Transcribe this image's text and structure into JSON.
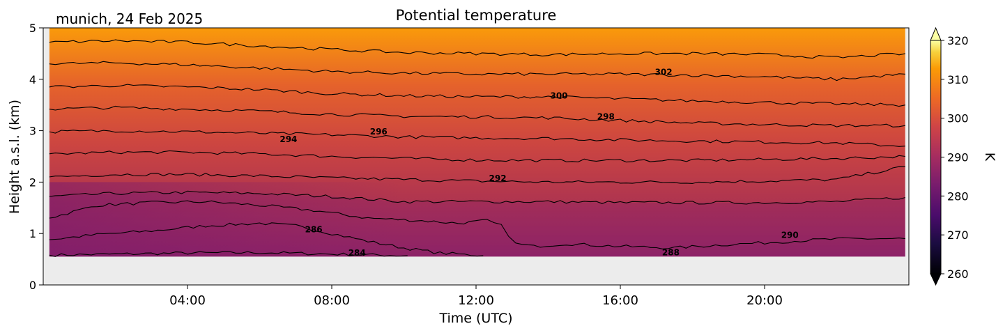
{
  "chart_data": {
    "type": "heatmap",
    "title": "Potential temperature",
    "subtitle": "munich, 24 Feb 2025",
    "xlabel": "Time (UTC)",
    "ylabel": "Height a.s.l. (km)",
    "x_unit": "hours UTC",
    "xlim": [
      0,
      24
    ],
    "x_ticks": [
      4,
      8,
      12,
      16,
      20
    ],
    "x_tick_labels": [
      "04:00",
      "08:00",
      "12:00",
      "16:00",
      "20:00"
    ],
    "ylim": [
      0,
      5
    ],
    "y_ticks": [
      0,
      1,
      2,
      3,
      4,
      5
    ],
    "y_tick_labels": [
      "0",
      "1",
      "2",
      "3",
      "4",
      "5"
    ],
    "data_coverage": {
      "x": [
        0.17,
        23.9
      ],
      "y": [
        0.55,
        5.0
      ]
    },
    "no_data_color": "#ececec",
    "colorbar": {
      "label": "K",
      "min": 260,
      "max": 320,
      "ticks": [
        260,
        270,
        280,
        290,
        300,
        310,
        320
      ],
      "tick_labels": [
        "260",
        "270",
        "280",
        "290",
        "300",
        "310",
        "320"
      ],
      "extend": "both",
      "colormap": "inferno"
    },
    "contours": [
      {
        "level": 284,
        "points": [
          [
            0.17,
            0.58
          ],
          [
            2,
            0.6
          ],
          [
            4,
            0.62
          ],
          [
            6,
            0.63
          ],
          [
            8,
            0.6
          ],
          [
            10.1,
            0.57
          ]
        ]
      },
      {
        "level": 286,
        "points": [
          [
            0.17,
            0.88
          ],
          [
            1.5,
            0.98
          ],
          [
            3,
            1.05
          ],
          [
            4.5,
            1.15
          ],
          [
            6,
            1.2
          ],
          [
            7,
            1.15
          ],
          [
            8,
            1.0
          ],
          [
            9,
            0.85
          ],
          [
            10,
            0.72
          ],
          [
            11,
            0.62
          ],
          [
            12.2,
            0.57
          ]
        ]
      },
      {
        "level": 288,
        "points": [
          [
            0.17,
            1.3
          ],
          [
            1.5,
            1.55
          ],
          [
            3,
            1.6
          ],
          [
            4.5,
            1.62
          ],
          [
            6,
            1.55
          ],
          [
            7.5,
            1.45
          ],
          [
            9,
            1.3
          ],
          [
            10.5,
            1.25
          ],
          [
            11.5,
            1.2
          ],
          [
            12.3,
            1.25
          ],
          [
            12.7,
            1.15
          ],
          [
            13.1,
            0.8
          ],
          [
            13.6,
            0.75
          ],
          [
            14.5,
            0.8
          ],
          [
            16,
            0.75
          ],
          [
            17.5,
            0.72
          ],
          [
            18.8,
            0.78
          ],
          [
            20,
            0.82
          ],
          [
            21.5,
            0.88
          ],
          [
            22.5,
            0.9
          ],
          [
            23.9,
            0.9
          ]
        ]
      },
      {
        "level": 290,
        "points": [
          [
            0.17,
            1.72
          ],
          [
            2,
            1.78
          ],
          [
            4,
            1.8
          ],
          [
            6,
            1.78
          ],
          [
            8,
            1.72
          ],
          [
            10,
            1.62
          ],
          [
            12,
            1.62
          ],
          [
            14,
            1.62
          ],
          [
            16,
            1.6
          ],
          [
            18,
            1.6
          ],
          [
            20,
            1.6
          ],
          [
            22,
            1.62
          ],
          [
            23.9,
            1.7
          ]
        ]
      },
      {
        "level": 292,
        "points": [
          [
            0.17,
            2.1
          ],
          [
            2,
            2.15
          ],
          [
            4,
            2.15
          ],
          [
            6,
            2.12
          ],
          [
            8,
            2.08
          ],
          [
            10,
            2.05
          ],
          [
            12,
            2.02
          ],
          [
            14,
            2.0
          ],
          [
            16,
            2.0
          ],
          [
            18,
            2.0
          ],
          [
            20,
            2.02
          ],
          [
            22,
            2.05
          ],
          [
            23.9,
            2.3
          ]
        ]
      },
      {
        "level": 294,
        "points": [
          [
            0.17,
            2.55
          ],
          [
            2,
            2.58
          ],
          [
            4,
            2.58
          ],
          [
            6,
            2.55
          ],
          [
            8,
            2.5
          ],
          [
            10,
            2.46
          ],
          [
            12,
            2.43
          ],
          [
            14,
            2.42
          ],
          [
            16,
            2.42
          ],
          [
            18,
            2.42
          ],
          [
            20,
            2.44
          ],
          [
            22,
            2.46
          ],
          [
            23.9,
            2.5
          ]
        ]
      },
      {
        "level": 296,
        "points": [
          [
            0.17,
            2.98
          ],
          [
            2,
            3.0
          ],
          [
            4,
            2.98
          ],
          [
            6,
            2.95
          ],
          [
            8,
            2.92
          ],
          [
            10,
            2.88
          ],
          [
            12,
            2.86
          ],
          [
            14,
            2.85
          ],
          [
            16,
            2.82
          ],
          [
            18,
            2.8
          ],
          [
            20,
            2.78
          ],
          [
            22,
            2.76
          ],
          [
            23.9,
            2.7
          ]
        ]
      },
      {
        "level": 298,
        "points": [
          [
            0.17,
            3.42
          ],
          [
            2,
            3.45
          ],
          [
            4,
            3.42
          ],
          [
            6,
            3.38
          ],
          [
            8,
            3.32
          ],
          [
            10,
            3.28
          ],
          [
            12,
            3.27
          ],
          [
            14,
            3.25
          ],
          [
            16,
            3.2
          ],
          [
            18,
            3.15
          ],
          [
            20,
            3.12
          ],
          [
            22,
            3.1
          ],
          [
            23.9,
            3.1
          ]
        ]
      },
      {
        "level": 300,
        "points": [
          [
            0.17,
            3.85
          ],
          [
            2,
            3.88
          ],
          [
            4,
            3.85
          ],
          [
            6,
            3.8
          ],
          [
            8,
            3.72
          ],
          [
            10,
            3.68
          ],
          [
            12,
            3.66
          ],
          [
            14,
            3.66
          ],
          [
            16,
            3.62
          ],
          [
            18,
            3.58
          ],
          [
            20,
            3.55
          ],
          [
            22,
            3.52
          ],
          [
            23.9,
            3.5
          ]
        ]
      },
      {
        "level": 302,
        "points": [
          [
            0.17,
            4.3
          ],
          [
            2,
            4.32
          ],
          [
            4,
            4.28
          ],
          [
            6,
            4.22
          ],
          [
            8,
            4.15
          ],
          [
            10,
            4.12
          ],
          [
            12,
            4.1
          ],
          [
            14,
            4.1
          ],
          [
            16,
            4.1
          ],
          [
            18,
            4.08
          ],
          [
            20,
            4.05
          ],
          [
            22,
            4.0
          ],
          [
            23.9,
            4.1
          ]
        ]
      },
      {
        "level": 304,
        "points": [
          [
            0.17,
            4.72
          ],
          [
            2,
            4.75
          ],
          [
            4,
            4.72
          ],
          [
            6,
            4.65
          ],
          [
            8,
            4.58
          ],
          [
            10,
            4.52
          ],
          [
            12,
            4.5
          ],
          [
            14,
            4.48
          ],
          [
            16,
            4.5
          ],
          [
            18,
            4.5
          ],
          [
            20,
            4.48
          ],
          [
            22,
            4.42
          ],
          [
            23.9,
            4.5
          ]
        ]
      }
    ],
    "contour_labels": [
      {
        "text": "284",
        "x": 8.7,
        "y": 0.62
      },
      {
        "text": "286",
        "x": 7.5,
        "y": 1.08
      },
      {
        "text": "288",
        "x": 17.4,
        "y": 0.63
      },
      {
        "text": "290",
        "x": 20.7,
        "y": 0.97
      },
      {
        "text": "292",
        "x": 12.6,
        "y": 2.07
      },
      {
        "text": "294",
        "x": 6.8,
        "y": 2.83
      },
      {
        "text": "296",
        "x": 9.3,
        "y": 2.98
      },
      {
        "text": "298",
        "x": 15.6,
        "y": 3.27
      },
      {
        "text": "300",
        "x": 14.3,
        "y": 3.68
      },
      {
        "text": "302",
        "x": 17.2,
        "y": 4.14
      }
    ]
  }
}
